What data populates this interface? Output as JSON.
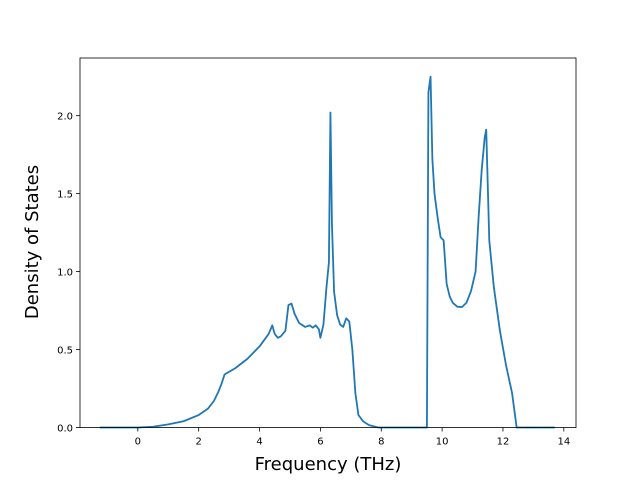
{
  "chart_data": {
    "type": "line",
    "title": "",
    "xlabel": "Frequency (THz)",
    "ylabel": "Density of States",
    "xlim": [
      -1.9,
      14.4
    ],
    "ylim": [
      0.0,
      2.37
    ],
    "xticks": [
      0,
      2,
      4,
      6,
      8,
      10,
      12,
      14
    ],
    "xtick_labels": [
      "0",
      "2",
      "4",
      "6",
      "8",
      "10",
      "12",
      "14"
    ],
    "yticks": [
      0.0,
      0.5,
      1.0,
      1.5,
      2.0
    ],
    "ytick_labels": [
      "0.0",
      "0.5",
      "1.0",
      "1.5",
      "2.0"
    ],
    "grid": false,
    "series": [
      {
        "color": "#1f77b4",
        "x": [
          -1.25,
          0.0,
          0.5,
          1.0,
          1.5,
          2.0,
          2.3,
          2.5,
          2.65,
          2.75,
          2.85,
          3.2,
          3.6,
          4.0,
          4.3,
          4.42,
          4.5,
          4.6,
          4.7,
          4.85,
          4.95,
          5.05,
          5.15,
          5.3,
          5.5,
          5.65,
          5.75,
          5.85,
          5.95,
          6.0,
          6.1,
          6.2,
          6.28,
          6.33,
          6.38,
          6.45,
          6.55,
          6.65,
          6.75,
          6.85,
          6.95,
          7.05,
          7.15,
          7.25,
          7.4,
          7.6,
          7.9,
          8.2,
          9.0,
          9.5,
          9.55,
          9.62,
          9.68,
          9.75,
          9.85,
          9.95,
          10.05,
          10.15,
          10.25,
          10.35,
          10.5,
          10.65,
          10.8,
          10.95,
          11.1,
          11.2,
          11.3,
          11.4,
          11.45,
          11.55,
          11.7,
          11.9,
          12.1,
          12.3,
          12.45,
          13.0,
          13.7
        ],
        "y": [
          0.0,
          0.0,
          0.005,
          0.02,
          0.04,
          0.08,
          0.12,
          0.17,
          0.23,
          0.28,
          0.34,
          0.38,
          0.44,
          0.52,
          0.6,
          0.655,
          0.6,
          0.575,
          0.585,
          0.62,
          0.785,
          0.795,
          0.73,
          0.67,
          0.645,
          0.655,
          0.64,
          0.655,
          0.63,
          0.575,
          0.66,
          0.9,
          1.06,
          2.02,
          1.3,
          0.87,
          0.72,
          0.66,
          0.645,
          0.7,
          0.68,
          0.5,
          0.22,
          0.08,
          0.04,
          0.015,
          0.0,
          0.0,
          0.0,
          0.0,
          2.15,
          2.25,
          1.72,
          1.5,
          1.35,
          1.22,
          1.2,
          0.92,
          0.84,
          0.8,
          0.775,
          0.772,
          0.8,
          0.875,
          1.0,
          1.35,
          1.65,
          1.86,
          1.91,
          1.2,
          0.9,
          0.62,
          0.4,
          0.22,
          0.0,
          0.0,
          0.0
        ]
      }
    ]
  }
}
